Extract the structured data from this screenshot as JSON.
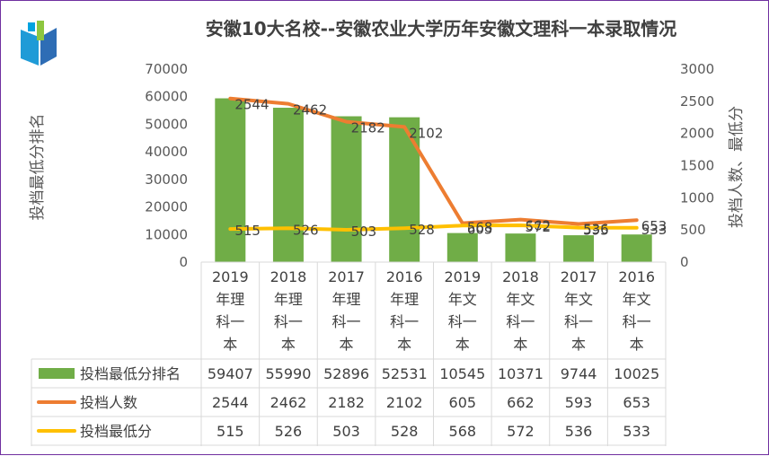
{
  "chart_data": {
    "type": "bar",
    "title": "安徽10大名校--安徽农业大学历年安徽文理科一本录取情况",
    "ylabel_left": "投档最低分排名",
    "ylabel_right": "投档人数、最低分",
    "ylim_left": [
      0,
      70000
    ],
    "ylim_right": [
      0,
      3000
    ],
    "left_ticks": [
      "0",
      "10000",
      "20000",
      "30000",
      "40000",
      "50000",
      "60000",
      "70000"
    ],
    "right_ticks": [
      "0",
      "500",
      "1000",
      "1500",
      "2000",
      "2500",
      "3000"
    ],
    "categories": [
      [
        "2019",
        "年理",
        "科一",
        "本"
      ],
      [
        "2018",
        "年理",
        "科一",
        "本"
      ],
      [
        "2017",
        "年理",
        "科一",
        "本"
      ],
      [
        "2016",
        "年理",
        "科一",
        "本"
      ],
      [
        "2019",
        "年文",
        "科一",
        "本"
      ],
      [
        "2018",
        "年文",
        "科一",
        "本"
      ],
      [
        "2017",
        "年文",
        "科一",
        "本"
      ],
      [
        "2016",
        "年文",
        "科一",
        "本"
      ]
    ],
    "series": [
      {
        "name": "投档最低分排名",
        "type": "bar",
        "axis": "left",
        "color": "#70ad47",
        "values": [
          59407,
          55990,
          52896,
          52531,
          10545,
          10371,
          9744,
          10025
        ],
        "labels": [
          "59407",
          "55990",
          "52896",
          "52531",
          "10545",
          "10371",
          "9744",
          "10025"
        ]
      },
      {
        "name": "投档人数",
        "type": "line",
        "axis": "right",
        "color": "#ed7d31",
        "values": [
          2544,
          2462,
          2182,
          2102,
          605,
          662,
          593,
          653
        ],
        "labels": [
          "2544",
          "2462",
          "2182",
          "2102",
          "605",
          "662",
          "593",
          "653"
        ]
      },
      {
        "name": "投档最低分",
        "type": "line",
        "axis": "right",
        "color": "#ffc000",
        "values": [
          515,
          526,
          503,
          528,
          568,
          572,
          536,
          533
        ],
        "labels": [
          "515",
          "526",
          "503",
          "528",
          "568",
          "572",
          "536",
          "533"
        ]
      }
    ],
    "data_table": true,
    "grid": false,
    "legend": "data-table"
  },
  "logo": {
    "name": "book-logo-icon",
    "colors": [
      "#1f9bd7",
      "#2e6db5",
      "#8dc63f",
      "#00a3e0"
    ]
  }
}
